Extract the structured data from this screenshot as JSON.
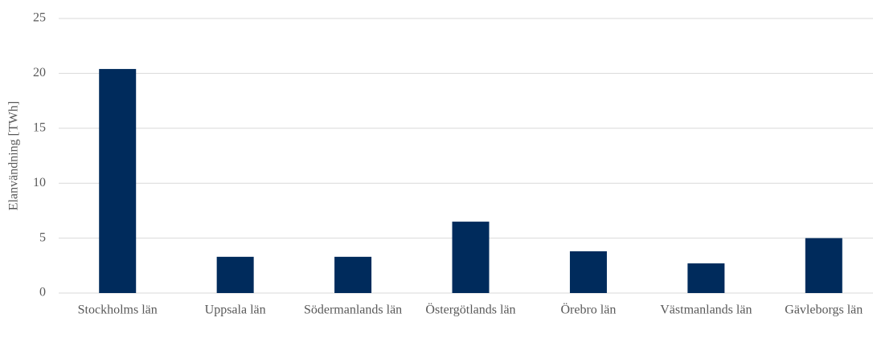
{
  "chart_data": {
    "type": "bar",
    "y_label": "Elanvändning [TWh]",
    "categories": [
      "Stockholms län",
      "Uppsala län",
      "Södermanlands län",
      "Östergötlands län",
      "Örebro län",
      "Västmanlands län",
      "Gävleborgs län"
    ],
    "values": [
      20.4,
      3.3,
      3.3,
      6.5,
      3.8,
      2.7,
      5.0
    ],
    "color": "#002b5c",
    "ylim": [
      0,
      25
    ],
    "yticks": [
      0,
      5,
      10,
      15,
      20,
      25
    ],
    "grid": true
  }
}
